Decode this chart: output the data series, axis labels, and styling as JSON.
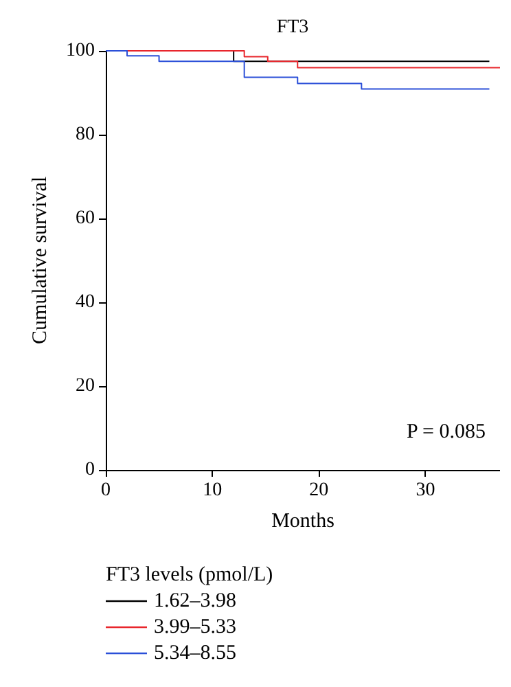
{
  "chart_data": {
    "type": "step",
    "title": "FT3",
    "xlabel": "Months",
    "ylabel": "Cumulative survival",
    "legend_title": "FT3 levels (pmol/L)",
    "annotations": [
      "P = 0.085"
    ],
    "xlim": [
      0,
      37
    ],
    "xticks": [
      0,
      10,
      20,
      30
    ],
    "ylim": [
      0,
      100
    ],
    "yticks": [
      0,
      20,
      40,
      60,
      80,
      100
    ],
    "grid": false,
    "legend": "bottom",
    "series": [
      {
        "name": "1.62–3.98",
        "color": "#000000",
        "x": [
          0,
          12,
          36
        ],
        "values": [
          100,
          97.5,
          97.5
        ]
      },
      {
        "name": "3.99–5.33",
        "color": "#e8262c",
        "x": [
          0,
          13,
          15.2,
          18,
          37
        ],
        "values": [
          100,
          98.6,
          97.5,
          96,
          96
        ]
      },
      {
        "name": "5.34–8.55",
        "color": "#2b4fd8",
        "x": [
          0,
          2,
          5,
          13,
          18,
          24,
          36
        ],
        "values": [
          100,
          98.8,
          97.5,
          93.7,
          92.2,
          90.9,
          90.9
        ]
      }
    ]
  }
}
